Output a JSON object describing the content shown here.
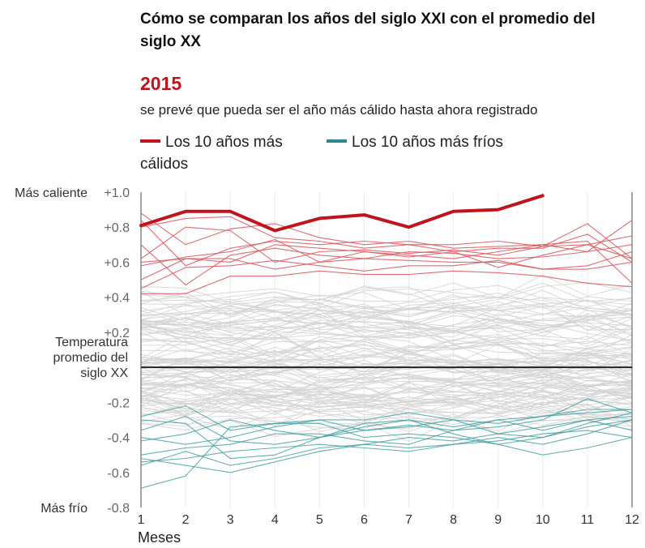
{
  "title": "Cómo se comparan los años del siglo XXI con el promedio del siglo XX",
  "highlight": {
    "year": "2015",
    "text": "se prevé que pueda ser el año más cálido hasta ahora registrado"
  },
  "legend": {
    "warm_label": "Los 10 años más cálidos",
    "cold_label": "Los 10 años más fríos"
  },
  "colors": {
    "highlight": "#c0141c",
    "warm": "#d9535a",
    "cold": "#3f9e9e",
    "background_lines": "#d4d4d4",
    "baseline": "#222222",
    "axis": "#888888"
  },
  "chart_data": {
    "type": "line",
    "title": "Cómo se comparan los años del siglo XXI con el promedio del siglo XX",
    "xlabel": "Meses",
    "ylabel": "",
    "x": [
      1,
      2,
      3,
      4,
      5,
      6,
      7,
      8,
      9,
      10,
      11,
      12
    ],
    "xticks": [
      "1",
      "2",
      "3",
      "4",
      "5",
      "6",
      "7",
      "8",
      "9",
      "10",
      "11",
      "12"
    ],
    "ylim": [
      -0.8,
      1.0
    ],
    "yticks": [
      {
        "value": 1.0,
        "label": "+1.0"
      },
      {
        "value": 0.8,
        "label": "+0.8"
      },
      {
        "value": 0.6,
        "label": "+0.6"
      },
      {
        "value": 0.4,
        "label": "+0.4"
      },
      {
        "value": 0.2,
        "label": "+0.2"
      },
      {
        "value": -0.2,
        "label": "-0.2"
      },
      {
        "value": -0.4,
        "label": "-0.4"
      },
      {
        "value": -0.6,
        "label": "-0.6"
      },
      {
        "value": -0.8,
        "label": "-0.8"
      }
    ],
    "side_labels": {
      "top": "Más caliente",
      "bottom": "Más frío",
      "baseline": [
        "Temperatura",
        "promedio del",
        "siglo XX"
      ]
    },
    "baseline_value": 0,
    "highlight_series": {
      "name": "2015",
      "values": [
        0.81,
        0.89,
        0.89,
        0.78,
        0.85,
        0.87,
        0.8,
        0.89,
        0.9,
        0.98
      ]
    },
    "warm_series": [
      {
        "values": [
          0.88,
          0.7,
          0.79,
          0.82,
          0.74,
          0.7,
          0.72,
          0.68,
          0.69,
          0.7,
          0.72,
          0.48
        ]
      },
      {
        "values": [
          0.84,
          0.58,
          0.68,
          0.72,
          0.7,
          0.72,
          0.7,
          0.7,
          0.72,
          0.69,
          0.7,
          0.62
        ]
      },
      {
        "values": [
          0.8,
          0.85,
          0.86,
          0.74,
          0.72,
          0.68,
          0.7,
          0.66,
          0.68,
          0.68,
          0.76,
          0.6
        ]
      },
      {
        "values": [
          0.62,
          0.8,
          0.78,
          0.6,
          0.66,
          0.67,
          0.65,
          0.67,
          0.64,
          0.69,
          0.82,
          0.62
        ]
      },
      {
        "values": [
          0.6,
          0.62,
          0.6,
          0.7,
          0.68,
          0.66,
          0.64,
          0.62,
          0.66,
          0.7,
          0.66,
          0.84
        ]
      },
      {
        "values": [
          0.58,
          0.63,
          0.66,
          0.73,
          0.6,
          0.66,
          0.63,
          0.66,
          0.57,
          0.64,
          0.7,
          0.75
        ]
      },
      {
        "values": [
          0.45,
          0.57,
          0.58,
          0.61,
          0.58,
          0.55,
          0.58,
          0.58,
          0.61,
          0.56,
          0.58,
          0.66
        ]
      },
      {
        "values": [
          0.42,
          0.42,
          0.52,
          0.52,
          0.55,
          0.53,
          0.53,
          0.55,
          0.54,
          0.52,
          0.48,
          0.46
        ]
      },
      {
        "values": [
          0.5,
          0.62,
          0.62,
          0.56,
          0.6,
          0.62,
          0.61,
          0.6,
          0.6,
          0.56,
          0.56,
          0.6
        ]
      },
      {
        "values": [
          0.7,
          0.47,
          0.64,
          0.68,
          0.64,
          0.62,
          0.66,
          0.65,
          0.62,
          0.63,
          0.66,
          0.7
        ]
      }
    ],
    "cold_series": [
      {
        "values": [
          -0.69,
          -0.62,
          -0.34,
          -0.32,
          -0.3,
          -0.36,
          -0.34,
          -0.3,
          -0.38,
          -0.4,
          -0.32,
          -0.26
        ]
      },
      {
        "values": [
          -0.56,
          -0.48,
          -0.56,
          -0.52,
          -0.46,
          -0.44,
          -0.46,
          -0.44,
          -0.4,
          -0.44,
          -0.38,
          -0.3
        ]
      },
      {
        "values": [
          -0.36,
          -0.28,
          -0.42,
          -0.44,
          -0.4,
          -0.36,
          -0.33,
          -0.36,
          -0.3,
          -0.28,
          -0.24,
          -0.24
        ]
      },
      {
        "values": [
          -0.3,
          -0.32,
          -0.52,
          -0.5,
          -0.4,
          -0.34,
          -0.3,
          -0.34,
          -0.3,
          -0.36,
          -0.3,
          -0.36
        ]
      },
      {
        "values": [
          -0.28,
          -0.22,
          -0.36,
          -0.32,
          -0.32,
          -0.4,
          -0.38,
          -0.4,
          -0.44,
          -0.5,
          -0.46,
          -0.4
        ]
      },
      {
        "values": [
          -0.5,
          -0.46,
          -0.44,
          -0.38,
          -0.38,
          -0.42,
          -0.44,
          -0.36,
          -0.34,
          -0.3,
          -0.18,
          -0.26
        ]
      },
      {
        "values": [
          -0.54,
          -0.52,
          -0.48,
          -0.46,
          -0.44,
          -0.46,
          -0.48,
          -0.44,
          -0.42,
          -0.38,
          -0.36,
          -0.4
        ]
      },
      {
        "values": [
          -0.42,
          -0.38,
          -0.3,
          -0.36,
          -0.4,
          -0.32,
          -0.3,
          -0.38,
          -0.44,
          -0.4,
          -0.34,
          -0.3
        ]
      },
      {
        "values": [
          -0.4,
          -0.44,
          -0.4,
          -0.34,
          -0.3,
          -0.3,
          -0.26,
          -0.3,
          -0.32,
          -0.28,
          -0.26,
          -0.24
        ]
      },
      {
        "values": [
          -0.52,
          -0.56,
          -0.6,
          -0.54,
          -0.48,
          -0.44,
          -0.4,
          -0.42,
          -0.38,
          -0.34,
          -0.3,
          -0.28
        ]
      }
    ]
  }
}
